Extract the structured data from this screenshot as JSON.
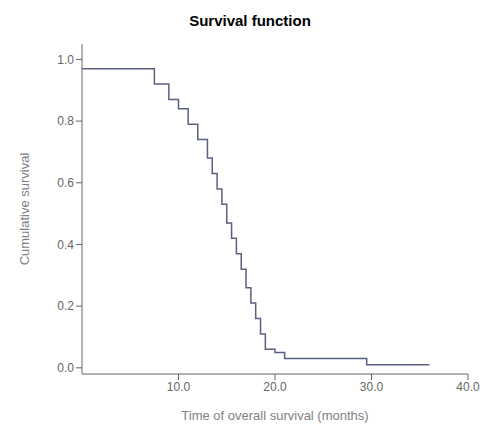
{
  "chart_data": {
    "type": "step",
    "title": "Survival function",
    "xlabel": "Time of overall survival (months)",
    "ylabel": "Cumulative survival",
    "color": "#5a6080",
    "x": [
      0,
      6,
      7.5,
      9,
      10,
      11,
      12,
      13,
      13.5,
      14,
      14.5,
      15,
      15.5,
      16,
      16.5,
      17,
      17.5,
      18,
      18.5,
      19,
      20,
      20.5,
      21,
      22,
      28,
      29.5,
      36
    ],
    "values": [
      0.97,
      0.97,
      0.92,
      0.87,
      0.84,
      0.79,
      0.74,
      0.68,
      0.63,
      0.58,
      0.53,
      0.47,
      0.42,
      0.37,
      0.32,
      0.26,
      0.21,
      0.16,
      0.11,
      0.06,
      0.05,
      0.05,
      0.03,
      0.03,
      0.03,
      0.01,
      0.01
    ],
    "xlim": [
      0,
      40
    ],
    "ylim": [
      -0.02,
      1.05
    ],
    "xticks": [
      {
        "value": 10,
        "label": "10.0"
      },
      {
        "value": 20,
        "label": "20.0"
      },
      {
        "value": 30,
        "label": "30.0"
      },
      {
        "value": 40,
        "label": "40.0"
      }
    ],
    "yticks": [
      {
        "value": 0,
        "label": "0.0"
      },
      0.2,
      0.4,
      0.6,
      0.8,
      {
        "value": 1,
        "label": "1.0"
      }
    ]
  }
}
